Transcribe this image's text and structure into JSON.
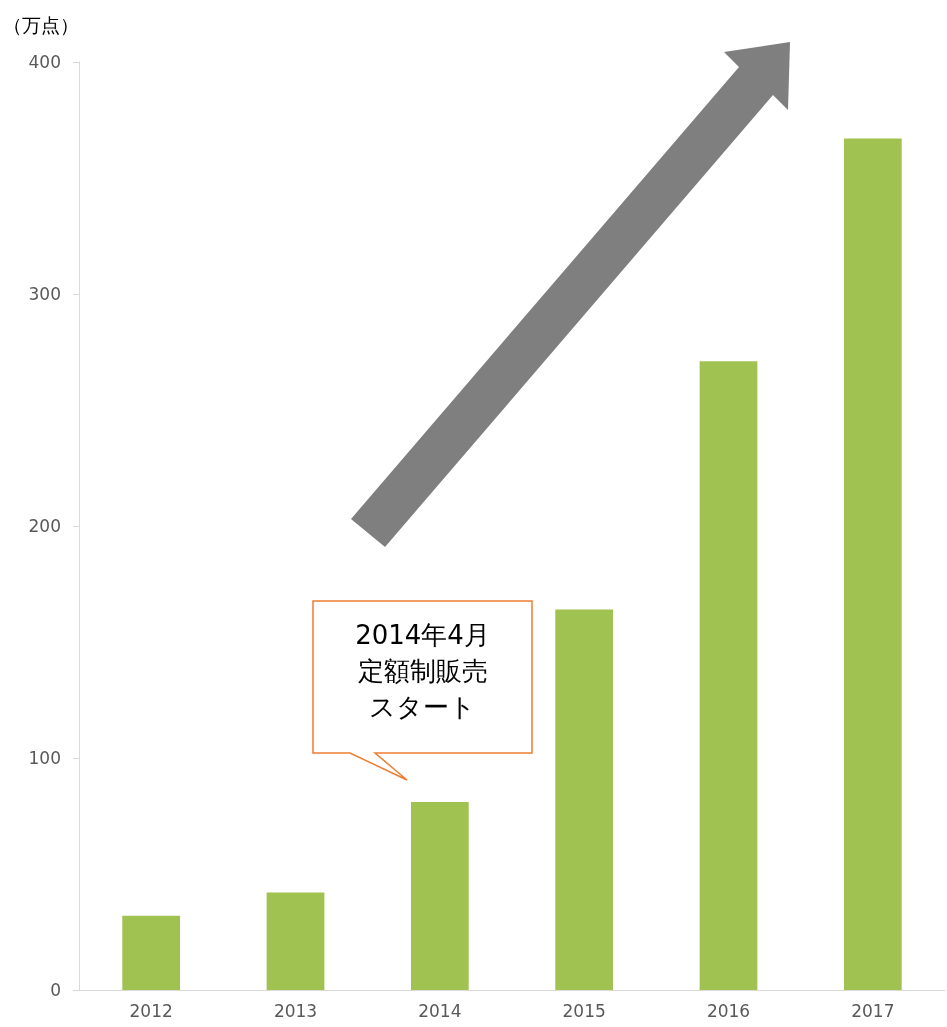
{
  "chart_data": {
    "type": "bar",
    "ylabel": "（万点）",
    "categories": [
      "2012",
      "2013",
      "2014",
      "2015",
      "2016",
      "2017"
    ],
    "values": [
      32,
      42,
      81,
      164,
      271,
      367
    ],
    "color": "#9fc250",
    "ylim": [
      0,
      400
    ],
    "yticks": [
      0,
      100,
      200,
      300,
      400
    ],
    "grid": false,
    "annotations": [
      "2014年4月定額制販売スタート"
    ]
  }
}
